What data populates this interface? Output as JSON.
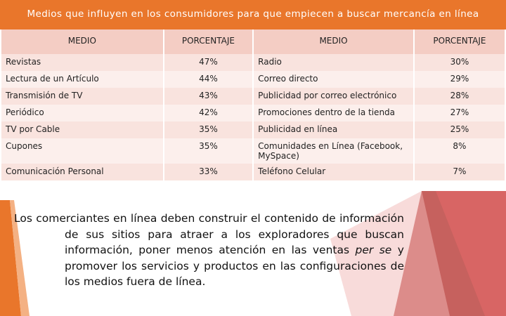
{
  "header": {
    "title": "Medios que influyen en los consumidores para que empiecen a buscar mercancía en línea"
  },
  "table": {
    "headers": [
      "MEDIO",
      "PORCENTAJE",
      "MEDIO",
      "PORCENTAJE"
    ],
    "rows": [
      [
        "Revistas",
        "47%",
        "Radio",
        "30%"
      ],
      [
        "Lectura de un Artículo",
        "44%",
        "Correo directo",
        "29%"
      ],
      [
        "Transmisión de TV",
        "43%",
        "Publicidad por correo electrónico",
        "28%"
      ],
      [
        "Periódico",
        "42%",
        "Promociones dentro de la tienda",
        "27%"
      ],
      [
        "TV por Cable",
        "35%",
        "Publicidad en línea",
        "25%"
      ],
      [
        "Cupones",
        "35%",
        "Comunidades en Línea (Facebook, MySpace)",
        "8%"
      ],
      [
        "Comunicación Personal",
        "33%",
        "Teléfono Celular",
        "7%"
      ]
    ]
  },
  "paragraph": {
    "before": "Los comerciantes en línea deben construir el contenido de información de sus sitios para atraer a los exploradores que buscan información, poner menos atención en las ventas",
    "italic": "per se",
    "after": "y promover los servicios y productos en las configuraciones de los medios fuera de línea."
  }
}
